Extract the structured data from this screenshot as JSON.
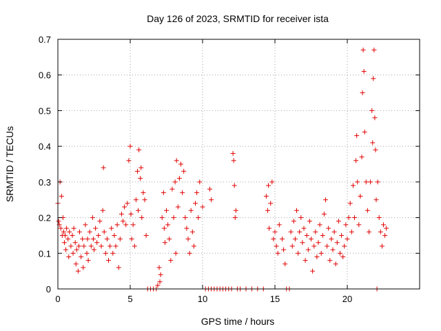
{
  "chart_data": {
    "type": "scatter",
    "title": "Day 126 of 2023, SRMTID for receiver ista",
    "xlabel": "GPS time / hours",
    "ylabel": "SRMTID / TECUs",
    "xlim": [
      0,
      25
    ],
    "ylim": [
      0,
      0.7
    ],
    "x_ticks": [
      0,
      5,
      10,
      15,
      20
    ],
    "x_tick_labels": [
      "0",
      "5",
      "10",
      "15",
      "20"
    ],
    "y_ticks": [
      0,
      0.1,
      0.2,
      0.3,
      0.4,
      0.5,
      0.6,
      0.7
    ],
    "y_tick_labels": [
      "0",
      "0.1",
      "0.2",
      "0.3",
      "0.4",
      "0.5",
      "0.6",
      "0.7"
    ],
    "grid": true,
    "marker": "plus",
    "series": [
      {
        "name": "SRMTID",
        "color": "#e00000",
        "points": [
          [
            0.0,
            0.24
          ],
          [
            0.05,
            0.19
          ],
          [
            0.1,
            0.18
          ],
          [
            0.15,
            0.3
          ],
          [
            0.2,
            0.17
          ],
          [
            0.25,
            0.26
          ],
          [
            0.3,
            0.15
          ],
          [
            0.35,
            0.2
          ],
          [
            0.4,
            0.16
          ],
          [
            0.45,
            0.13
          ],
          [
            0.5,
            0.15
          ],
          [
            0.55,
            0.11
          ],
          [
            0.6,
            0.17
          ],
          [
            0.7,
            0.14
          ],
          [
            0.75,
            0.09
          ],
          [
            0.8,
            0.16
          ],
          [
            0.9,
            0.12
          ],
          [
            1.0,
            0.15
          ],
          [
            1.05,
            0.1
          ],
          [
            1.1,
            0.17
          ],
          [
            1.2,
            0.13
          ],
          [
            1.25,
            0.07
          ],
          [
            1.3,
            0.11
          ],
          [
            1.4,
            0.05
          ],
          [
            1.45,
            0.12
          ],
          [
            1.5,
            0.16
          ],
          [
            1.6,
            0.09
          ],
          [
            1.7,
            0.14
          ],
          [
            1.75,
            0.06
          ],
          [
            1.8,
            0.12
          ],
          [
            1.9,
            0.18
          ],
          [
            2.0,
            0.1
          ],
          [
            2.05,
            0.14
          ],
          [
            2.1,
            0.08
          ],
          [
            2.2,
            0.16
          ],
          [
            2.3,
            0.12
          ],
          [
            2.4,
            0.2
          ],
          [
            2.45,
            0.14
          ],
          [
            2.5,
            0.11
          ],
          [
            2.6,
            0.17
          ],
          [
            2.7,
            0.13
          ],
          [
            2.8,
            0.15
          ],
          [
            2.9,
            0.19
          ],
          [
            3.0,
            0.12
          ],
          [
            3.1,
            0.22
          ],
          [
            3.15,
            0.34
          ],
          [
            3.2,
            0.16
          ],
          [
            3.3,
            0.1
          ],
          [
            3.4,
            0.14
          ],
          [
            3.5,
            0.08
          ],
          [
            3.6,
            0.12
          ],
          [
            3.7,
            0.17
          ],
          [
            3.8,
            0.1
          ],
          [
            3.9,
            0.15
          ],
          [
            4.0,
            0.12
          ],
          [
            4.1,
            0.18
          ],
          [
            4.2,
            0.06
          ],
          [
            4.3,
            0.14
          ],
          [
            4.4,
            0.21
          ],
          [
            4.5,
            0.19
          ],
          [
            4.6,
            0.23
          ],
          [
            4.7,
            0.18
          ],
          [
            4.8,
            0.24
          ],
          [
            4.9,
            0.36
          ],
          [
            5.0,
            0.4
          ],
          [
            5.05,
            0.21
          ],
          [
            5.1,
            0.14
          ],
          [
            5.2,
            0.18
          ],
          [
            5.3,
            0.12
          ],
          [
            5.4,
            0.25
          ],
          [
            5.5,
            0.33
          ],
          [
            5.55,
            0.22
          ],
          [
            5.6,
            0.39
          ],
          [
            5.7,
            0.31
          ],
          [
            5.75,
            0.34
          ],
          [
            5.8,
            0.2
          ],
          [
            5.9,
            0.27
          ],
          [
            6.0,
            0.25
          ],
          [
            6.1,
            0.15
          ],
          [
            6.2,
            0.0
          ],
          [
            6.4,
            0.0
          ],
          [
            6.6,
            0.0
          ],
          [
            6.8,
            0.0
          ],
          [
            6.9,
            0.01
          ],
          [
            7.0,
            0.06
          ],
          [
            7.05,
            0.02
          ],
          [
            7.1,
            0.04
          ],
          [
            7.2,
            0.2
          ],
          [
            7.3,
            0.27
          ],
          [
            7.35,
            0.17
          ],
          [
            7.4,
            0.13
          ],
          [
            7.5,
            0.22
          ],
          [
            7.6,
            0.18
          ],
          [
            7.7,
            0.14
          ],
          [
            7.8,
            0.08
          ],
          [
            7.9,
            0.28
          ],
          [
            8.0,
            0.2
          ],
          [
            8.1,
            0.3
          ],
          [
            8.15,
            0.1
          ],
          [
            8.2,
            0.36
          ],
          [
            8.3,
            0.23
          ],
          [
            8.4,
            0.31
          ],
          [
            8.5,
            0.35
          ],
          [
            8.6,
            0.27
          ],
          [
            8.7,
            0.33
          ],
          [
            8.8,
            0.2
          ],
          [
            8.9,
            0.17
          ],
          [
            9.0,
            0.14
          ],
          [
            9.1,
            0.1
          ],
          [
            9.2,
            0.22
          ],
          [
            9.3,
            0.16
          ],
          [
            9.4,
            0.12
          ],
          [
            9.5,
            0.24
          ],
          [
            9.6,
            0.27
          ],
          [
            9.7,
            0.2
          ],
          [
            9.8,
            0.3
          ],
          [
            10.0,
            0.23
          ],
          [
            10.2,
            0.0
          ],
          [
            10.4,
            0.0
          ],
          [
            10.6,
            0.0
          ],
          [
            10.8,
            0.0
          ],
          [
            10.5,
            0.28
          ],
          [
            10.6,
            0.25
          ],
          [
            11.0,
            0.0
          ],
          [
            11.2,
            0.0
          ],
          [
            11.4,
            0.0
          ],
          [
            11.6,
            0.0
          ],
          [
            11.8,
            0.0
          ],
          [
            12.0,
            0.0
          ],
          [
            12.1,
            0.38
          ],
          [
            12.15,
            0.36
          ],
          [
            12.2,
            0.29
          ],
          [
            12.25,
            0.2
          ],
          [
            12.3,
            0.22
          ],
          [
            12.4,
            0.0
          ],
          [
            12.6,
            0.0
          ],
          [
            13.0,
            0.0
          ],
          [
            13.4,
            0.0
          ],
          [
            13.8,
            0.0
          ],
          [
            14.2,
            0.0
          ],
          [
            14.4,
            0.26
          ],
          [
            14.5,
            0.22
          ],
          [
            14.55,
            0.29
          ],
          [
            14.6,
            0.17
          ],
          [
            14.7,
            0.24
          ],
          [
            14.8,
            0.3
          ],
          [
            14.9,
            0.14
          ],
          [
            15.0,
            0.16
          ],
          [
            15.1,
            0.12
          ],
          [
            15.2,
            0.1
          ],
          [
            15.3,
            0.18
          ],
          [
            15.5,
            0.14
          ],
          [
            15.6,
            0.11
          ],
          [
            15.7,
            0.07
          ],
          [
            15.8,
            0.0
          ],
          [
            16.0,
            0.0
          ],
          [
            16.1,
            0.16
          ],
          [
            16.2,
            0.12
          ],
          [
            16.3,
            0.19
          ],
          [
            16.4,
            0.14
          ],
          [
            16.5,
            0.22
          ],
          [
            16.6,
            0.1
          ],
          [
            16.7,
            0.16
          ],
          [
            16.8,
            0.2
          ],
          [
            16.9,
            0.13
          ],
          [
            17.0,
            0.17
          ],
          [
            17.1,
            0.08
          ],
          [
            17.2,
            0.15
          ],
          [
            17.3,
            0.11
          ],
          [
            17.4,
            0.19
          ],
          [
            17.5,
            0.14
          ],
          [
            17.6,
            0.05
          ],
          [
            17.7,
            0.12
          ],
          [
            17.8,
            0.16
          ],
          [
            17.9,
            0.09
          ],
          [
            18.0,
            0.13
          ],
          [
            18.1,
            0.18
          ],
          [
            18.2,
            0.1
          ],
          [
            18.3,
            0.15
          ],
          [
            18.4,
            0.21
          ],
          [
            18.5,
            0.25
          ],
          [
            18.6,
            0.12
          ],
          [
            18.7,
            0.17
          ],
          [
            18.8,
            0.08
          ],
          [
            18.9,
            0.14
          ],
          [
            19.0,
            0.11
          ],
          [
            19.1,
            0.16
          ],
          [
            19.2,
            0.07
          ],
          [
            19.3,
            0.13
          ],
          [
            19.4,
            0.19
          ],
          [
            19.5,
            0.1
          ],
          [
            19.6,
            0.15
          ],
          [
            19.7,
            0.09
          ],
          [
            19.8,
            0.12
          ],
          [
            19.9,
            0.18
          ],
          [
            20.0,
            0.14
          ],
          [
            20.1,
            0.2
          ],
          [
            20.2,
            0.24
          ],
          [
            20.3,
            0.16
          ],
          [
            20.4,
            0.29
          ],
          [
            20.5,
            0.2
          ],
          [
            20.6,
            0.36
          ],
          [
            20.65,
            0.43
          ],
          [
            20.7,
            0.3
          ],
          [
            20.8,
            0.18
          ],
          [
            20.9,
            0.26
          ],
          [
            21.0,
            0.37
          ],
          [
            21.05,
            0.55
          ],
          [
            21.1,
            0.67
          ],
          [
            21.15,
            0.61
          ],
          [
            21.2,
            0.44
          ],
          [
            21.3,
            0.3
          ],
          [
            21.4,
            0.22
          ],
          [
            21.5,
            0.16
          ],
          [
            21.6,
            0.3
          ],
          [
            21.7,
            0.5
          ],
          [
            21.75,
            0.41
          ],
          [
            21.8,
            0.59
          ],
          [
            21.85,
            0.67
          ],
          [
            21.9,
            0.48
          ],
          [
            21.95,
            0.39
          ],
          [
            22.0,
            0.25
          ],
          [
            22.05,
            0.0
          ],
          [
            22.1,
            0.3
          ],
          [
            22.2,
            0.2
          ],
          [
            22.3,
            0.16
          ],
          [
            22.4,
            0.12
          ],
          [
            22.5,
            0.18
          ],
          [
            22.6,
            0.15
          ],
          [
            22.7,
            0.17
          ]
        ]
      }
    ]
  }
}
